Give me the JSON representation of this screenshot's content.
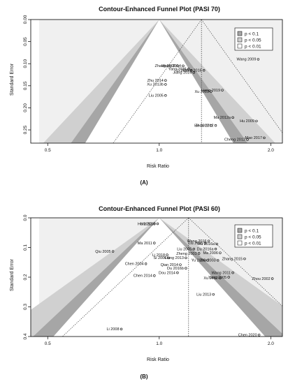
{
  "figure": {
    "panel_labels": [
      "(A)",
      "(B)"
    ]
  },
  "legend": {
    "items": [
      {
        "label": "p < 0.1",
        "color": "#a6a6a6"
      },
      {
        "label": "p < 0.05",
        "color": "#d0d0d0"
      },
      {
        "label": "p < 0.01",
        "color": "#ffffff"
      }
    ],
    "outer_color": "#f0f0f0",
    "placement": "top-right"
  },
  "chart_data": [
    {
      "type": "scatter",
      "title": "Contour-Enhanced Funnel Plot (PASI 70)",
      "xlabel": "Risk Ratio",
      "ylabel": "Standard Error",
      "x_scale": "log",
      "xlim": [
        0.45,
        2.15
      ],
      "ylim": [
        0.0,
        0.28
      ],
      "x_ticks": [
        0.5,
        1.0,
        2.0
      ],
      "x_tick_labels": [
        "0.5",
        "1.0",
        "2.0"
      ],
      "y_ticks": [
        0.0,
        0.05,
        0.1,
        0.15,
        0.2,
        0.25
      ],
      "y_tick_labels": [
        "0.00",
        "0.05",
        "0.10",
        "0.15",
        "0.20",
        "0.25"
      ],
      "pooled_estimate": 1.3,
      "y_reversed": true,
      "points": [
        {
          "label": "Wang 2009",
          "x": 1.85,
          "y": 0.09
        },
        {
          "label": "Zhang 2009",
          "x": 1.12,
          "y": 0.105
        },
        {
          "label": "Wang 2014",
          "x": 1.16,
          "y": 0.105
        },
        {
          "label": "Yang 2015",
          "x": 1.2,
          "y": 0.112
        },
        {
          "label": "Li 2016",
          "x": 1.22,
          "y": 0.115
        },
        {
          "label": "Deng 2016",
          "x": 1.32,
          "y": 0.115
        },
        {
          "label": "Jiang 2016",
          "x": 1.24,
          "y": 0.12
        },
        {
          "label": "Zhu 2014",
          "x": 1.04,
          "y": 0.138
        },
        {
          "label": "Xu 2013b",
          "x": 1.04,
          "y": 0.147
        },
        {
          "label": "Liang 2019",
          "x": 1.48,
          "y": 0.16
        },
        {
          "label": "Xu 2019",
          "x": 1.38,
          "y": 0.163
        },
        {
          "label": "Liu 2005",
          "x": 1.04,
          "y": 0.172
        },
        {
          "label": "Ma 2012a",
          "x": 1.58,
          "y": 0.222
        },
        {
          "label": "Hu 2009",
          "x": 1.83,
          "y": 0.23
        },
        {
          "label": "He 2012",
          "x": 1.38,
          "y": 0.24
        },
        {
          "label": "Zhou 2012",
          "x": 1.42,
          "y": 0.24
        },
        {
          "label": "Cheng 2012",
          "x": 1.73,
          "y": 0.272
        },
        {
          "label": "Mao 2017",
          "x": 1.92,
          "y": 0.268
        }
      ]
    },
    {
      "type": "scatter",
      "title": "Contour-Enhanced Funnel Plot (PASI 60)",
      "xlabel": "Risk Ratio",
      "ylabel": "Standard Error",
      "x_scale": "log",
      "xlim": [
        0.45,
        2.15
      ],
      "ylim": [
        0.0,
        0.4
      ],
      "x_ticks": [
        0.5,
        1.0,
        2.0
      ],
      "x_tick_labels": [
        "0.5",
        "1.0",
        "2.0"
      ],
      "y_ticks": [
        0.0,
        0.1,
        0.2,
        0.3,
        0.4
      ],
      "y_tick_labels": [
        "0.0",
        "0.1",
        "0.2",
        "0.3",
        "0.4"
      ],
      "pooled_estimate": 1.2,
      "y_reversed": true,
      "points": [
        {
          "label": "Ma 2013",
          "x": 0.99,
          "y": 0.02
        },
        {
          "label": "Hu 2013",
          "x": 0.97,
          "y": 0.02
        },
        {
          "label": "Ma 2011",
          "x": 0.97,
          "y": 0.085
        },
        {
          "label": "Wang 2016",
          "x": 1.36,
          "y": 0.078
        },
        {
          "label": "Liu 2015",
          "x": 1.33,
          "y": 0.085
        },
        {
          "label": "Wu 2016a",
          "x": 1.43,
          "y": 0.088
        },
        {
          "label": "Liu 2005",
          "x": 1.24,
          "y": 0.105
        },
        {
          "label": "Du 2016a",
          "x": 1.42,
          "y": 0.105
        },
        {
          "label": "Qiu 2005",
          "x": 0.75,
          "y": 0.113
        },
        {
          "label": "Zheng 2003",
          "x": 1.28,
          "y": 0.12
        },
        {
          "label": "Ma 2006",
          "x": 1.46,
          "y": 0.118
        },
        {
          "label": "Li 2018",
          "x": 1.05,
          "y": 0.125
        },
        {
          "label": "Si 2006",
          "x": 1.06,
          "y": 0.135
        },
        {
          "label": "Liang 2013",
          "x": 1.18,
          "y": 0.135
        },
        {
          "label": "Zhang 2015",
          "x": 1.7,
          "y": 0.138
        },
        {
          "label": "Yu 2008",
          "x": 1.35,
          "y": 0.143
        },
        {
          "label": "Zhu 2003",
          "x": 1.44,
          "y": 0.143
        },
        {
          "label": "Chen 2004",
          "x": 0.92,
          "y": 0.155
        },
        {
          "label": "Qian 2014",
          "x": 1.14,
          "y": 0.158
        },
        {
          "label": "Du 2016b",
          "x": 1.18,
          "y": 0.17
        },
        {
          "label": "Dou 2014",
          "x": 1.12,
          "y": 0.185
        },
        {
          "label": "Chen 2014",
          "x": 0.97,
          "y": 0.195
        },
        {
          "label": "Wang 2011",
          "x": 1.58,
          "y": 0.185
        },
        {
          "label": "Yang 2005",
          "x": 1.54,
          "y": 0.2
        },
        {
          "label": "Xu 2012",
          "x": 1.46,
          "y": 0.203
        },
        {
          "label": "Zhou 2002",
          "x": 2.02,
          "y": 0.205
        },
        {
          "label": "Liu 2013",
          "x": 1.4,
          "y": 0.258
        },
        {
          "label": "Li 2008",
          "x": 0.79,
          "y": 0.375
        },
        {
          "label": "Chen 2020",
          "x": 1.86,
          "y": 0.395
        }
      ]
    }
  ]
}
